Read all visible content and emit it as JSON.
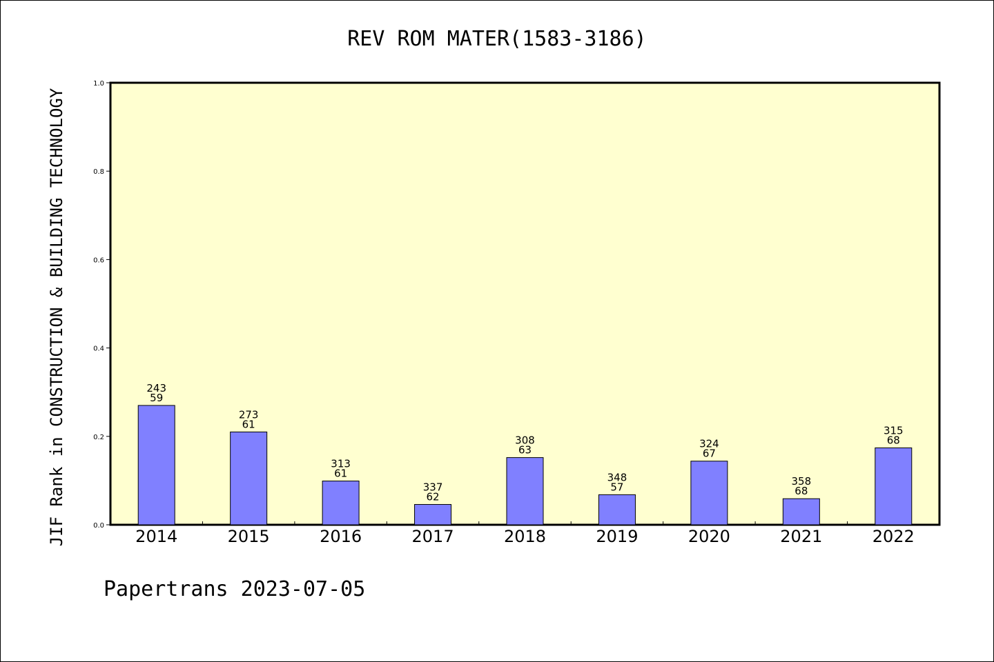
{
  "title": "REV ROM MATER(1583-3186)",
  "footer": "Papertrans 2023-07-05",
  "colors": {
    "plot_background": "#FFFFD0",
    "bar_fill": "#8080FF",
    "bar_stroke": "#000000",
    "axis": "#000000"
  },
  "chart_data": {
    "type": "bar",
    "title": "REV ROM MATER(1583-3186)",
    "xlabel": "",
    "ylabel": "JIF Rank in CONSTRUCTION & BUILDING TECHNOLOGY",
    "ylim": [
      0,
      1.0
    ],
    "yticks": [
      "0.0",
      "0.2",
      "0.4",
      "0.6",
      "0.8",
      "1.0"
    ],
    "grid": false,
    "legend": "none",
    "categories": [
      "2014",
      "2015",
      "2016",
      "2017",
      "2018",
      "2019",
      "2020",
      "2021",
      "2022"
    ],
    "values": [
      0.27,
      0.21,
      0.099,
      0.046,
      0.152,
      0.068,
      0.144,
      0.059,
      0.174
    ],
    "bar_labels": [
      {
        "top": "243",
        "bottom": "59"
      },
      {
        "top": "273",
        "bottom": "61"
      },
      {
        "top": "313",
        "bottom": "61"
      },
      {
        "top": "337",
        "bottom": "62"
      },
      {
        "top": "308",
        "bottom": "63"
      },
      {
        "top": "348",
        "bottom": "57"
      },
      {
        "top": "324",
        "bottom": "67"
      },
      {
        "top": "358",
        "bottom": "68"
      },
      {
        "top": "315",
        "bottom": "68"
      }
    ]
  }
}
